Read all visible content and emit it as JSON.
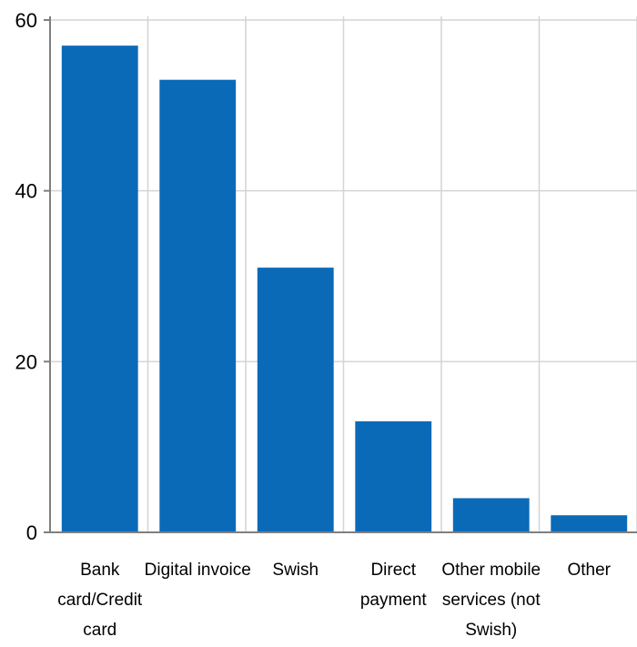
{
  "chart_data": {
    "type": "bar",
    "categories": [
      [
        "Bank",
        "card/Credit",
        "card"
      ],
      [
        "Digital invoice"
      ],
      [
        "Swish"
      ],
      [
        "Direct",
        "payment"
      ],
      [
        "Other mobile",
        "services (not",
        "Swish)"
      ],
      [
        "Other"
      ]
    ],
    "values": [
      57,
      53,
      31,
      13,
      4,
      2
    ],
    "title": "",
    "xlabel": "",
    "ylabel": "",
    "ylim": [
      0,
      60
    ],
    "yticks": [
      0,
      20,
      40,
      60
    ],
    "grid": "vertical",
    "legend": "none",
    "bar_color": "#0a6ab8",
    "grid_color": "#d4d4d4",
    "axis_color": "#7f7f7f"
  }
}
